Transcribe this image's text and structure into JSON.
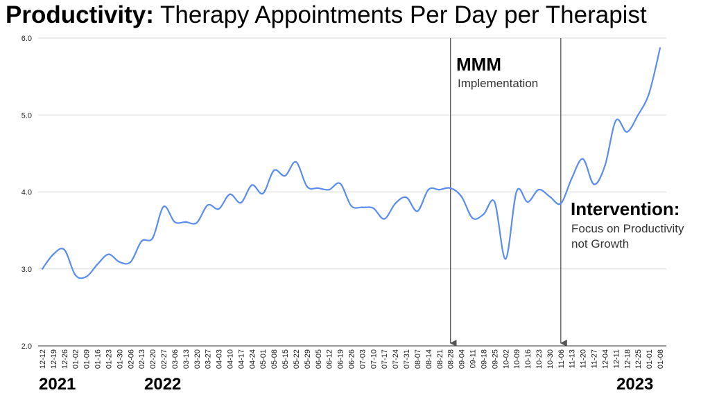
{
  "title": {
    "bold": "Productivity:",
    "rest": " Therapy Appointments Per Day per Therapist"
  },
  "chart_data": {
    "type": "line",
    "color": "#5B8DEF",
    "ylim": [
      2.0,
      6.0
    ],
    "yticks": [
      "2.0",
      "3.0",
      "4.0",
      "5.0",
      "6.0"
    ],
    "grid": true,
    "categories": [
      "12-12",
      "12-19",
      "12-26",
      "01-02",
      "01-09",
      "01-16",
      "01-23",
      "01-30",
      "02-06",
      "02-13",
      "02-20",
      "02-27",
      "03-06",
      "03-13",
      "03-20",
      "03-27",
      "04-03",
      "04-10",
      "04-17",
      "04-24",
      "05-01",
      "05-08",
      "05-15",
      "05-22",
      "05-29",
      "06-05",
      "06-12",
      "06-19",
      "06-26",
      "07-03",
      "07-10",
      "07-17",
      "07-24",
      "07-31",
      "08-07",
      "08-14",
      "08-21",
      "08-28",
      "09-04",
      "09-11",
      "09-18",
      "09-25",
      "10-02",
      "10-09",
      "10-16",
      "10-23",
      "10-30",
      "11-06",
      "11-13",
      "11-20",
      "11-27",
      "12-04",
      "12-11",
      "12-18",
      "12-25",
      "01-01",
      "01-08"
    ],
    "values": [
      3.0,
      3.19,
      3.25,
      2.92,
      2.9,
      3.06,
      3.19,
      3.09,
      3.09,
      3.36,
      3.4,
      3.81,
      3.61,
      3.61,
      3.6,
      3.83,
      3.78,
      3.97,
      3.86,
      4.09,
      3.98,
      4.28,
      4.21,
      4.39,
      4.07,
      4.05,
      4.03,
      4.11,
      3.82,
      3.8,
      3.79,
      3.65,
      3.85,
      3.93,
      3.75,
      4.03,
      4.03,
      4.05,
      3.94,
      3.66,
      3.71,
      3.87,
      3.13,
      4.01,
      3.87,
      4.03,
      3.94,
      3.85,
      4.18,
      4.43,
      4.1,
      4.34,
      4.93,
      4.78,
      5.0,
      5.28,
      5.87
    ],
    "vlines": [
      {
        "at": "08-28",
        "heading": "MMM",
        "subtitle": "Implementation"
      },
      {
        "at": "11-06",
        "heading": "Intervention:",
        "subtitle": "Focus on Productivity\nnot Growth"
      }
    ],
    "years": [
      {
        "label": "2021",
        "at": "12-12"
      },
      {
        "label": "2022",
        "at": "01-23"
      },
      {
        "label": "2023",
        "at": "12-11"
      }
    ]
  }
}
